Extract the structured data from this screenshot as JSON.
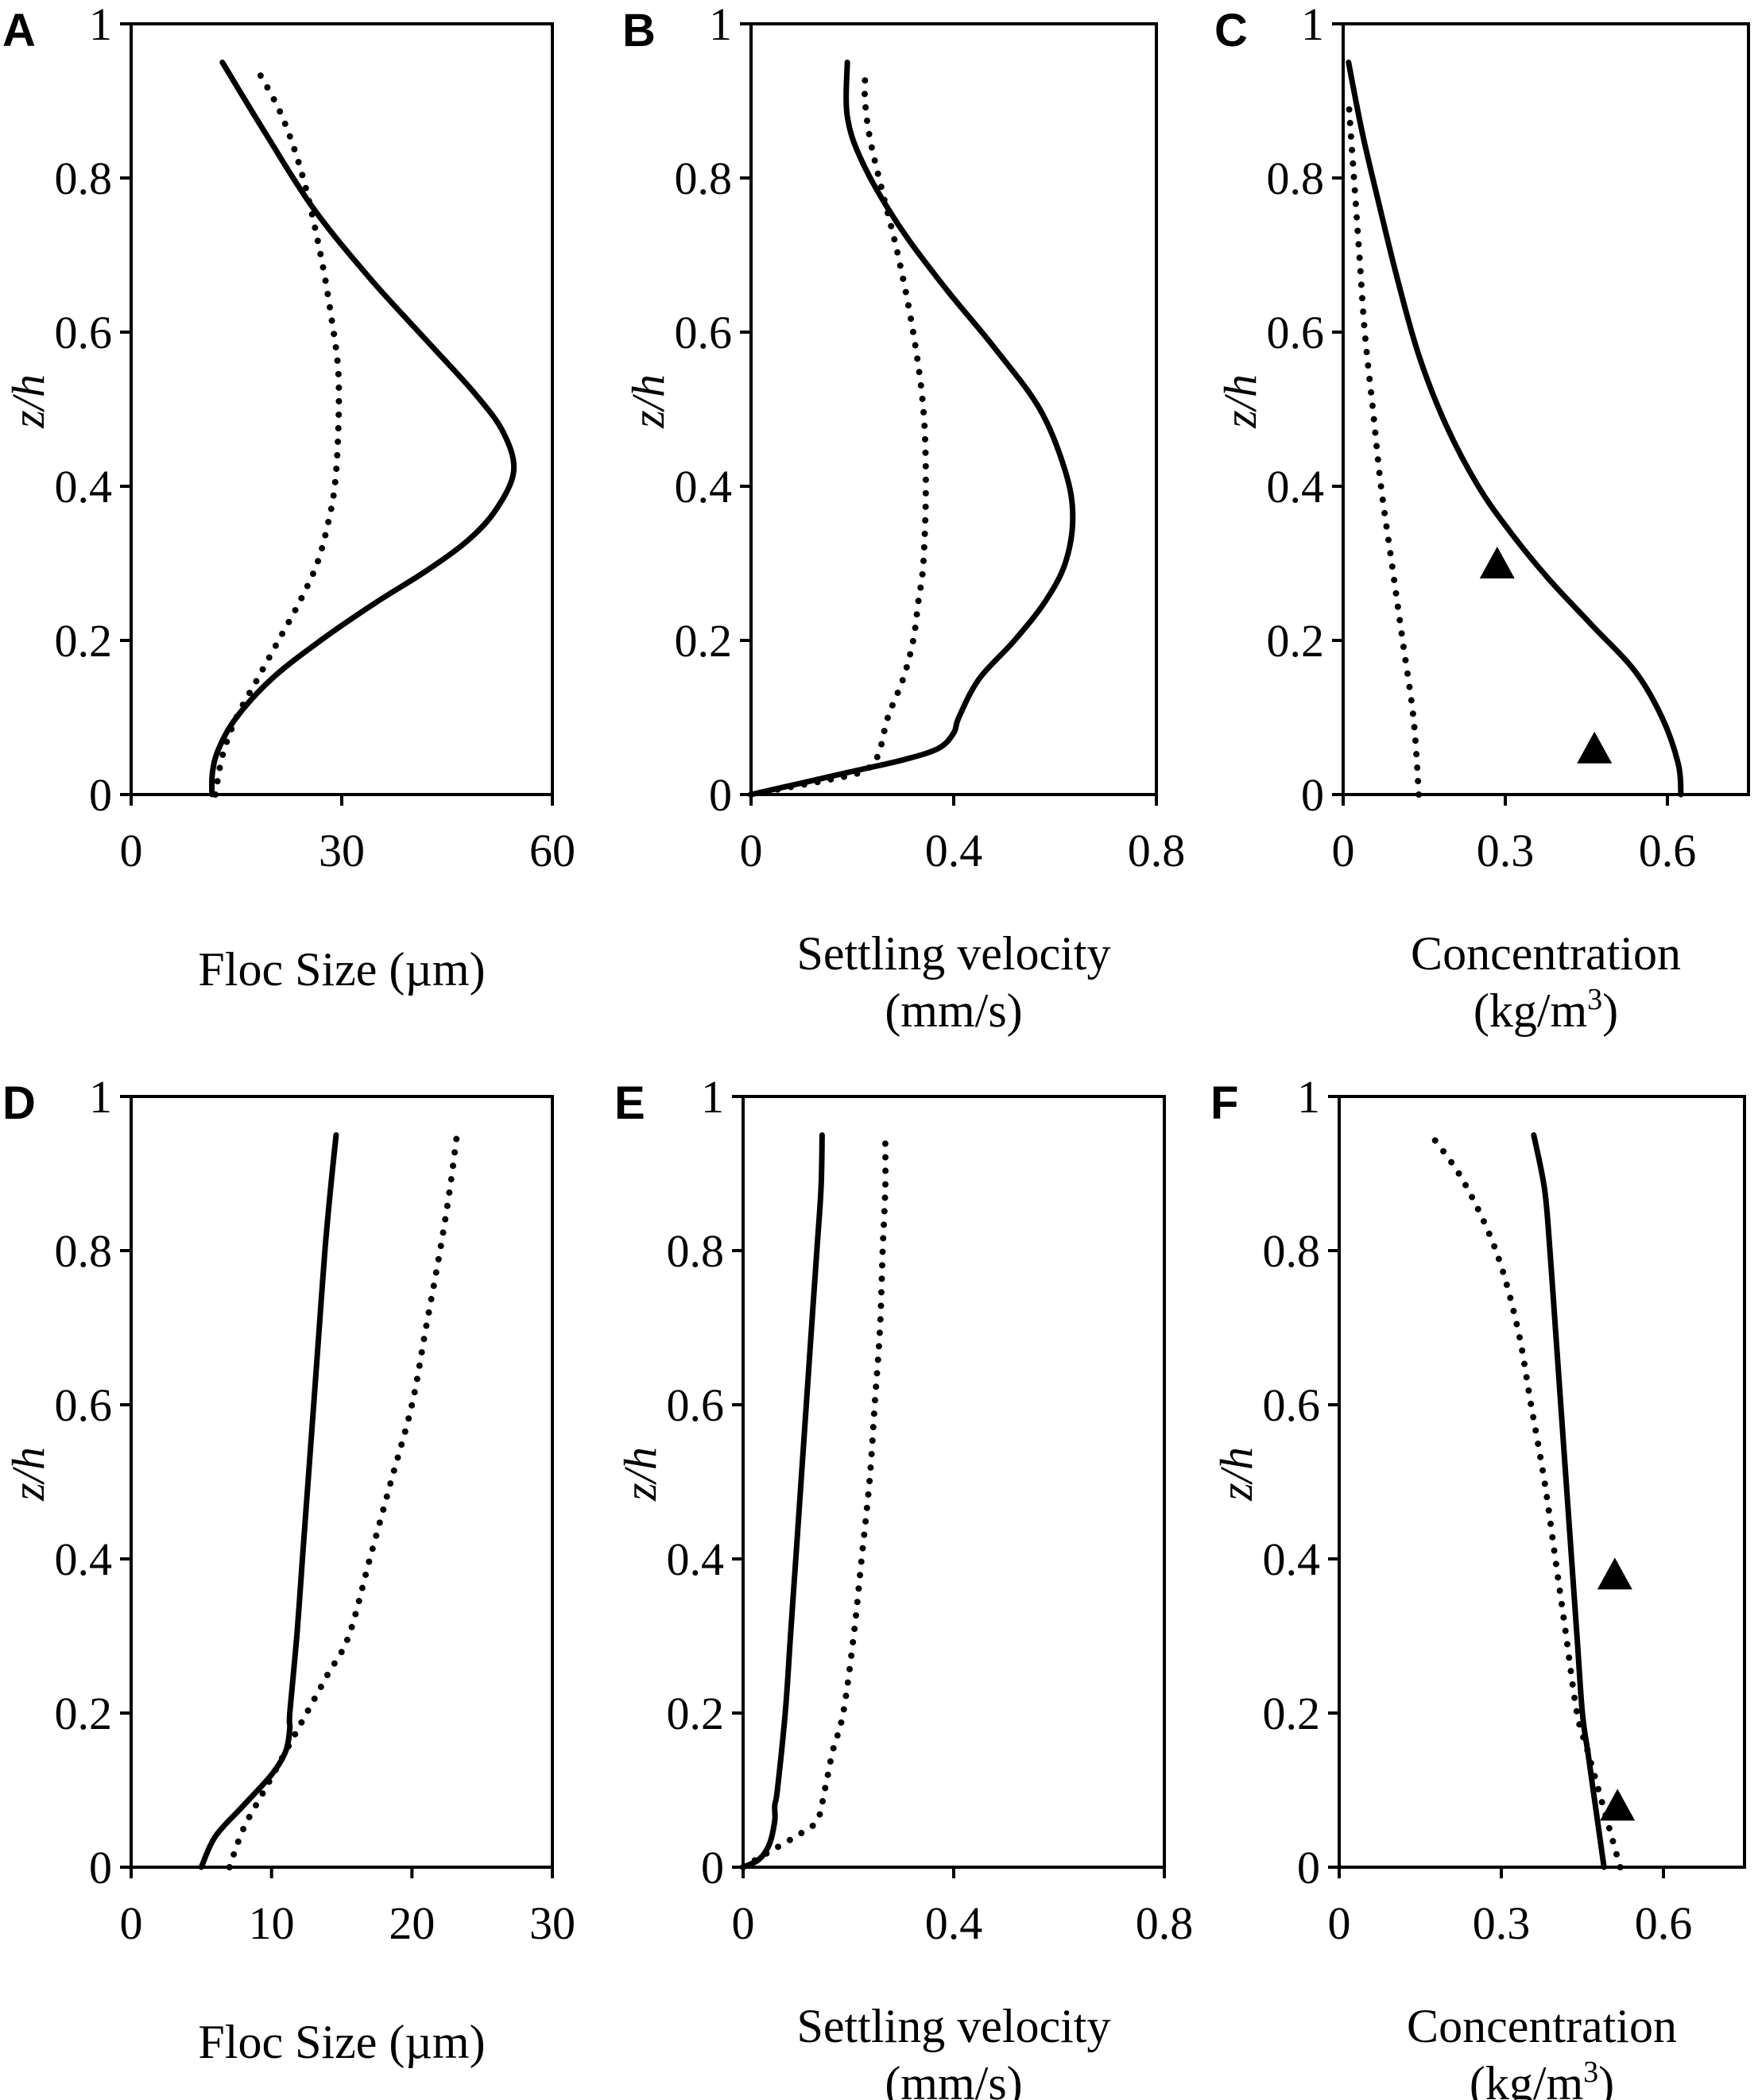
{
  "figure": {
    "panel_labels": [
      "A",
      "B",
      "C",
      "D",
      "E",
      "F"
    ]
  },
  "chart_data": [
    {
      "panel": "A",
      "type": "line",
      "xlabel": "Floc Size (µm)",
      "xlabel_lines": [
        "Floc Size (µm)"
      ],
      "ylabel": "z/h",
      "xlim": [
        0,
        60
      ],
      "ylim": [
        0,
        1
      ],
      "xticks": [
        0,
        30,
        60
      ],
      "xtick_labels": [
        "0",
        "30",
        "60"
      ],
      "yticks": [
        0,
        0.2,
        0.4,
        0.6,
        0.8,
        1
      ],
      "ytick_labels": [
        "0",
        "0.2",
        "0.4",
        "0.6",
        "0.8",
        "1"
      ],
      "series": [
        {
          "name": "solid",
          "style": "solid",
          "points": [
            [
              11.5,
              0
            ],
            [
              11.6,
              0.03
            ],
            [
              12.5,
              0.06
            ],
            [
              15,
              0.1
            ],
            [
              20,
              0.15
            ],
            [
              27,
              0.2
            ],
            [
              35,
              0.25
            ],
            [
              42,
              0.29
            ],
            [
              48,
              0.33
            ],
            [
              52,
              0.37
            ],
            [
              54.5,
              0.42
            ],
            [
              53,
              0.47
            ],
            [
              49,
              0.52
            ],
            [
              42,
              0.59
            ],
            [
              34,
              0.67
            ],
            [
              26,
              0.76
            ],
            [
              19,
              0.86
            ],
            [
              13,
              0.95
            ]
          ]
        },
        {
          "name": "dotted",
          "style": "dotted",
          "points": [
            [
              12,
              0
            ],
            [
              13,
              0.05
            ],
            [
              15,
              0.1
            ],
            [
              18,
              0.15
            ],
            [
              21,
              0.2
            ],
            [
              24,
              0.25
            ],
            [
              26.5,
              0.3
            ],
            [
              28,
              0.35
            ],
            [
              29,
              0.4
            ],
            [
              29.5,
              0.47
            ],
            [
              29.5,
              0.55
            ],
            [
              28.5,
              0.62
            ],
            [
              27,
              0.7
            ],
            [
              24.5,
              0.8
            ],
            [
              21.5,
              0.88
            ],
            [
              18,
              0.94
            ]
          ]
        }
      ],
      "markers": []
    },
    {
      "panel": "B",
      "type": "line",
      "xlabel": "Settling velocity (mm/s)",
      "xlabel_lines": [
        "Settling velocity",
        "(mm/s)"
      ],
      "ylabel": "z/h",
      "xlim": [
        0,
        0.8
      ],
      "ylim": [
        0,
        1
      ],
      "xticks": [
        0,
        0.4,
        0.8
      ],
      "xtick_labels": [
        "0",
        "0.4",
        "0.8"
      ],
      "yticks": [
        0,
        0.2,
        0.4,
        0.6,
        0.8,
        1
      ],
      "ytick_labels": [
        "0",
        "0.2",
        "0.4",
        "0.6",
        "0.8",
        "1"
      ],
      "series": [
        {
          "name": "solid",
          "style": "solid",
          "points": [
            [
              0,
              0
            ],
            [
              0.1,
              0.015
            ],
            [
              0.2,
              0.03
            ],
            [
              0.3,
              0.045
            ],
            [
              0.37,
              0.06
            ],
            [
              0.4,
              0.08
            ],
            [
              0.41,
              0.1
            ],
            [
              0.45,
              0.15
            ],
            [
              0.52,
              0.2
            ],
            [
              0.58,
              0.25
            ],
            [
              0.62,
              0.3
            ],
            [
              0.635,
              0.36
            ],
            [
              0.62,
              0.42
            ],
            [
              0.57,
              0.5
            ],
            [
              0.48,
              0.58
            ],
            [
              0.38,
              0.66
            ],
            [
              0.29,
              0.74
            ],
            [
              0.22,
              0.82
            ],
            [
              0.19,
              0.88
            ],
            [
              0.19,
              0.95
            ]
          ]
        },
        {
          "name": "dotted",
          "style": "dotted",
          "points": [
            [
              0,
              0
            ],
            [
              0.08,
              0.01
            ],
            [
              0.16,
              0.02
            ],
            [
              0.22,
              0.03
            ],
            [
              0.25,
              0.05
            ],
            [
              0.27,
              0.1
            ],
            [
              0.3,
              0.15
            ],
            [
              0.32,
              0.2
            ],
            [
              0.33,
              0.25
            ],
            [
              0.34,
              0.3
            ],
            [
              0.345,
              0.4
            ],
            [
              0.34,
              0.5
            ],
            [
              0.32,
              0.6
            ],
            [
              0.29,
              0.7
            ],
            [
              0.26,
              0.78
            ],
            [
              0.235,
              0.85
            ],
            [
              0.225,
              0.9
            ],
            [
              0.225,
              0.93
            ]
          ]
        }
      ],
      "markers": []
    },
    {
      "panel": "C",
      "type": "line",
      "xlabel": "Concentration (kg/m3)",
      "xlabel_lines": [
        "Concentration",
        "(kg/m",
        "3",
        ")"
      ],
      "ylabel": "z/h",
      "xlim": [
        0,
        0.75
      ],
      "ylim": [
        0,
        1
      ],
      "xticks": [
        0,
        0.3,
        0.6
      ],
      "xtick_labels": [
        "0",
        "0.3",
        "0.6"
      ],
      "yticks": [
        0,
        0.2,
        0.4,
        0.6,
        0.8,
        1
      ],
      "ytick_labels": [
        "0",
        "0.2",
        "0.4",
        "0.6",
        "0.8",
        "1"
      ],
      "series": [
        {
          "name": "solid",
          "style": "solid",
          "points": [
            [
              0.625,
              0
            ],
            [
              0.62,
              0.04
            ],
            [
              0.59,
              0.1
            ],
            [
              0.54,
              0.16
            ],
            [
              0.46,
              0.22
            ],
            [
              0.38,
              0.28
            ],
            [
              0.31,
              0.34
            ],
            [
              0.25,
              0.4
            ],
            [
              0.19,
              0.48
            ],
            [
              0.14,
              0.57
            ],
            [
              0.1,
              0.67
            ],
            [
              0.065,
              0.77
            ],
            [
              0.035,
              0.86
            ],
            [
              0.01,
              0.95
            ]
          ]
        },
        {
          "name": "dotted",
          "style": "dotted",
          "points": [
            [
              0.14,
              0
            ],
            [
              0.13,
              0.1
            ],
            [
              0.11,
              0.2
            ],
            [
              0.09,
              0.3
            ],
            [
              0.07,
              0.4
            ],
            [
              0.055,
              0.5
            ],
            [
              0.04,
              0.6
            ],
            [
              0.03,
              0.7
            ],
            [
              0.02,
              0.8
            ],
            [
              0.01,
              0.9
            ]
          ]
        }
      ],
      "markers": [
        [
          0.285,
          0.3
        ],
        [
          0.465,
          0.06
        ]
      ]
    },
    {
      "panel": "D",
      "type": "line",
      "xlabel": "Floc Size (µm)",
      "xlabel_lines": [
        "Floc Size (µm)"
      ],
      "ylabel": "z/h",
      "xlim": [
        0,
        30
      ],
      "ylim": [
        0,
        1
      ],
      "xticks": [
        0,
        10,
        20,
        30
      ],
      "xtick_labels": [
        "0",
        "10",
        "20",
        "30"
      ],
      "yticks": [
        0,
        0.2,
        0.4,
        0.6,
        0.8,
        1
      ],
      "ytick_labels": [
        "0",
        "0.2",
        "0.4",
        "0.6",
        "0.8",
        "1"
      ],
      "series": [
        {
          "name": "solid",
          "style": "solid",
          "points": [
            [
              5,
              0
            ],
            [
              6,
              0.04
            ],
            [
              8,
              0.08
            ],
            [
              10,
              0.12
            ],
            [
              11,
              0.15
            ],
            [
              11.3,
              0.18
            ],
            [
              11.3,
              0.2
            ],
            [
              11.8,
              0.3
            ],
            [
              12.2,
              0.4
            ],
            [
              12.6,
              0.5
            ],
            [
              13,
              0.6
            ],
            [
              13.4,
              0.7
            ],
            [
              13.8,
              0.8
            ],
            [
              14.2,
              0.88
            ],
            [
              14.6,
              0.95
            ]
          ]
        },
        {
          "name": "dotted",
          "style": "dotted",
          "points": [
            [
              7,
              0
            ],
            [
              8,
              0.05
            ],
            [
              9.5,
              0.1
            ],
            [
              11,
              0.15
            ],
            [
              12.5,
              0.2
            ],
            [
              14,
              0.25
            ],
            [
              15.5,
              0.3
            ],
            [
              17,
              0.4
            ],
            [
              18.5,
              0.5
            ],
            [
              20,
              0.6
            ],
            [
              21,
              0.7
            ],
            [
              22,
              0.8
            ],
            [
              22.7,
              0.88
            ],
            [
              23.2,
              0.95
            ]
          ]
        }
      ],
      "markers": []
    },
    {
      "panel": "E",
      "type": "line",
      "xlabel": "Settling velocity (mm/s)",
      "xlabel_lines": [
        "Settling velocity",
        "(mm/s)"
      ],
      "ylabel": "z/h",
      "xlim": [
        0,
        0.8
      ],
      "ylim": [
        0,
        1
      ],
      "xticks": [
        0,
        0.4,
        0.8
      ],
      "xtick_labels": [
        "0",
        "0.4",
        "0.8"
      ],
      "yticks": [
        0,
        0.2,
        0.4,
        0.6,
        0.8,
        1
      ],
      "ytick_labels": [
        "0",
        "0.2",
        "0.4",
        "0.6",
        "0.8",
        "1"
      ],
      "series": [
        {
          "name": "solid",
          "style": "solid",
          "points": [
            [
              0,
              0
            ],
            [
              0.03,
              0.01
            ],
            [
              0.05,
              0.03
            ],
            [
              0.06,
              0.06
            ],
            [
              0.06,
              0.08
            ],
            [
              0.065,
              0.1
            ],
            [
              0.08,
              0.2
            ],
            [
              0.09,
              0.3
            ],
            [
              0.1,
              0.4
            ],
            [
              0.11,
              0.5
            ],
            [
              0.12,
              0.6
            ],
            [
              0.13,
              0.7
            ],
            [
              0.14,
              0.8
            ],
            [
              0.148,
              0.88
            ],
            [
              0.15,
              0.95
            ]
          ]
        },
        {
          "name": "dotted",
          "style": "dotted",
          "points": [
            [
              0,
              0
            ],
            [
              0.05,
              0.02
            ],
            [
              0.1,
              0.04
            ],
            [
              0.14,
              0.06
            ],
            [
              0.155,
              0.1
            ],
            [
              0.17,
              0.15
            ],
            [
              0.19,
              0.2
            ],
            [
              0.21,
              0.3
            ],
            [
              0.225,
              0.4
            ],
            [
              0.24,
              0.5
            ],
            [
              0.25,
              0.6
            ],
            [
              0.26,
              0.7
            ],
            [
              0.265,
              0.8
            ],
            [
              0.27,
              0.88
            ],
            [
              0.27,
              0.94
            ]
          ]
        }
      ],
      "markers": []
    },
    {
      "panel": "F",
      "type": "line",
      "xlabel": "Concentration (kg/m3)",
      "xlabel_lines": [
        "Concentration",
        "(kg/m",
        "3",
        ")"
      ],
      "ylabel": "z/h",
      "xlim": [
        0,
        0.75
      ],
      "ylim": [
        0,
        1
      ],
      "xticks": [
        0,
        0.3,
        0.6
      ],
      "xtick_labels": [
        "0",
        "0.3",
        "0.6"
      ],
      "yticks": [
        0,
        0.2,
        0.4,
        0.6,
        0.8,
        1
      ],
      "ytick_labels": [
        "0",
        "0.2",
        "0.4",
        "0.6",
        "0.8",
        "1"
      ],
      "series": [
        {
          "name": "solid",
          "style": "solid",
          "points": [
            [
              0.49,
              0
            ],
            [
              0.48,
              0.05
            ],
            [
              0.47,
              0.1
            ],
            [
              0.46,
              0.15
            ],
            [
              0.45,
              0.2
            ],
            [
              0.44,
              0.3
            ],
            [
              0.43,
              0.4
            ],
            [
              0.42,
              0.5
            ],
            [
              0.41,
              0.6
            ],
            [
              0.4,
              0.7
            ],
            [
              0.39,
              0.8
            ],
            [
              0.38,
              0.88
            ],
            [
              0.36,
              0.95
            ]
          ]
        },
        {
          "name": "dotted",
          "style": "dotted",
          "points": [
            [
              0.52,
              0
            ],
            [
              0.5,
              0.05
            ],
            [
              0.48,
              0.1
            ],
            [
              0.46,
              0.15
            ],
            [
              0.44,
              0.2
            ],
            [
              0.42,
              0.3
            ],
            [
              0.4,
              0.4
            ],
            [
              0.38,
              0.5
            ],
            [
              0.355,
              0.6
            ],
            [
              0.33,
              0.7
            ],
            [
              0.29,
              0.8
            ],
            [
              0.23,
              0.89
            ],
            [
              0.17,
              0.95
            ]
          ]
        }
      ],
      "markers": [
        [
          0.51,
          0.38
        ],
        [
          0.515,
          0.08
        ]
      ]
    }
  ]
}
